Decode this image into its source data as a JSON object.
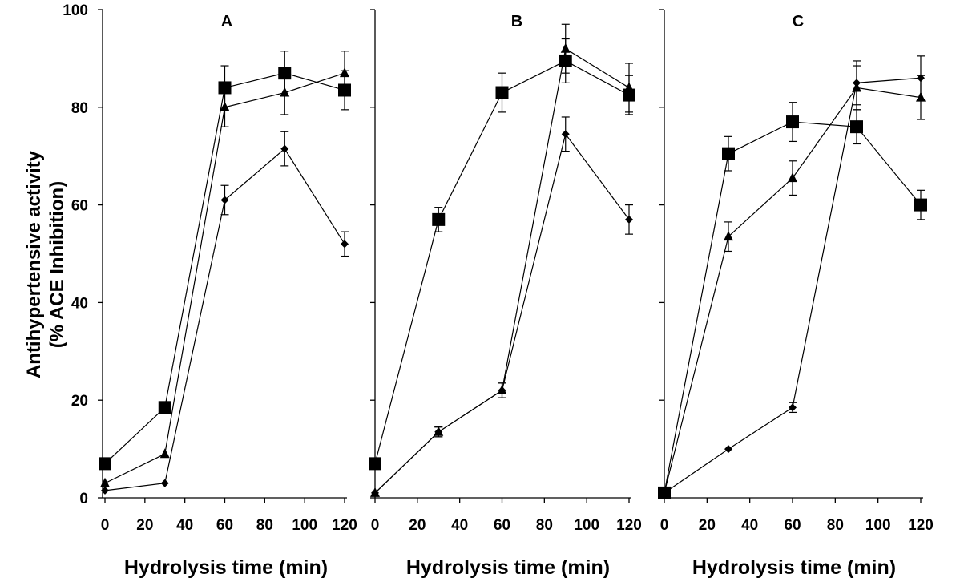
{
  "chart_data": {
    "type": "line",
    "ylabel_line1": "Antihypertensive activity",
    "ylabel_line2": "(% ACE Inhibition)",
    "ylim": [
      0,
      100
    ],
    "yticks": [
      0,
      20,
      40,
      60,
      80,
      100
    ],
    "xlim": [
      0,
      120
    ],
    "xticks": [
      0,
      20,
      40,
      60,
      80,
      100,
      120
    ],
    "x": [
      0,
      30,
      60,
      90,
      120
    ],
    "panels": [
      {
        "title": "A",
        "xlabel": "Hydrolysis time (min)",
        "series": [
          {
            "name": "square",
            "marker": "square",
            "values": [
              7,
              18.5,
              84,
              87,
              83.5
            ],
            "errors": [
              0,
              0,
              4.5,
              4.5,
              4
            ]
          },
          {
            "name": "triangle",
            "marker": "triangle",
            "values": [
              3,
              9,
              80,
              83,
              87
            ],
            "errors": [
              0,
              0,
              4,
              4.5,
              4.5
            ]
          },
          {
            "name": "diamond",
            "marker": "diamond",
            "values": [
              1.5,
              3,
              61,
              71.5,
              52
            ],
            "errors": [
              0,
              0,
              3,
              3.5,
              2.5
            ]
          }
        ]
      },
      {
        "title": "B",
        "xlabel": "Hydrolysis time (min)",
        "series": [
          {
            "name": "square",
            "marker": "square",
            "values": [
              7,
              57,
              83,
              89.5,
              82.5
            ],
            "errors": [
              0,
              2.5,
              4,
              4.5,
              4
            ]
          },
          {
            "name": "triangle",
            "marker": "triangle",
            "values": [
              1,
              13.5,
              22,
              92,
              84
            ],
            "errors": [
              0,
              1,
              1.5,
              5,
              5
            ]
          },
          {
            "name": "diamond",
            "marker": "diamond",
            "values": [
              1,
              13.5,
              22,
              74.5,
              57
            ],
            "errors": [
              0,
              1,
              1.5,
              3.5,
              3
            ]
          }
        ]
      },
      {
        "title": "C",
        "xlabel": "Hydrolysis time (min)",
        "series": [
          {
            "name": "square",
            "marker": "square",
            "values": [
              1,
              70.5,
              77,
              76,
              60
            ],
            "errors": [
              0,
              3.5,
              4,
              3.5,
              3
            ]
          },
          {
            "name": "triangle",
            "marker": "triangle",
            "values": [
              1,
              53.5,
              65.5,
              84,
              82
            ],
            "errors": [
              0,
              3,
              3.5,
              4.5,
              4.5
            ]
          },
          {
            "name": "diamond",
            "marker": "diamond",
            "values": [
              1,
              10,
              18.5,
              85,
              86
            ],
            "errors": [
              0,
              0,
              1,
              4.5,
              4.5
            ]
          }
        ]
      }
    ]
  }
}
